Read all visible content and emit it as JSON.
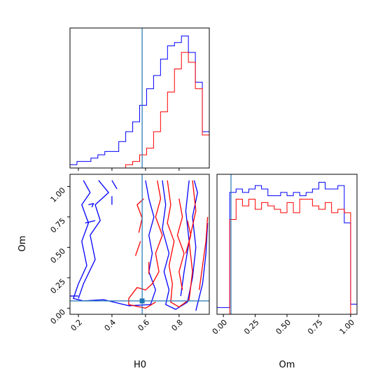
{
  "chart_data": {
    "type": "corner",
    "parameters": [
      "H0",
      "Om"
    ],
    "truth": {
      "H0": 0.58,
      "Om": 0.06
    },
    "colors": {
      "series_a": "#0000ff",
      "series_b": "#ff0000",
      "truth_line": "#1f77b4"
    },
    "panels": [
      {
        "name": "H0-histogram",
        "type": "step-histogram",
        "xlim": [
          0.15,
          0.98
        ],
        "x_ticks": [
          0.2,
          0.4,
          0.6,
          0.8
        ],
        "bins": [
          0.15,
          0.1915,
          0.233,
          0.2745,
          0.316,
          0.3575,
          0.399,
          0.4405,
          0.482,
          0.5235,
          0.565,
          0.6065,
          0.648,
          0.6895,
          0.731,
          0.7725,
          0.814,
          0.8555,
          0.897,
          0.9385,
          0.98
        ],
        "series": [
          {
            "color": "blue",
            "counts": [
              1,
              2,
              2,
              3,
              4,
              5,
              5,
              8,
              11,
              14,
              19,
              24,
              28,
              33,
              37,
              38,
              40,
              35,
              26,
              11
            ]
          },
          {
            "color": "red",
            "counts": [
              0,
              0,
              0,
              0,
              0,
              0,
              0,
              0,
              1,
              2,
              4,
              6,
              11,
              17,
              23,
              30,
              35,
              32,
              24,
              10
            ]
          }
        ]
      },
      {
        "name": "Om-histogram",
        "type": "step-histogram",
        "xlim": [
          -0.05,
          1.05
        ],
        "x_ticks": [
          "0.00",
          "0.25",
          "0.50",
          "0.75",
          "1.00"
        ],
        "bins": [
          -0.05,
          0.0,
          0.05,
          0.1,
          0.15,
          0.2,
          0.25,
          0.3,
          0.35,
          0.4,
          0.45,
          0.5,
          0.55,
          0.6,
          0.65,
          0.7,
          0.75,
          0.8,
          0.85,
          0.9,
          0.95,
          1.0,
          1.05
        ],
        "series": [
          {
            "color": "blue",
            "counts": [
              2,
              2,
              36,
              37,
              36,
              37,
              38,
              37,
              35,
              35,
              36,
              35,
              36,
              35,
              36,
              37,
              39,
              37,
              37,
              38,
              27,
              3
            ]
          },
          {
            "color": "red",
            "counts": [
              0,
              0,
              28,
              34,
              32,
              34,
              31,
              33,
              32,
              31,
              30,
              33,
              30,
              34,
              34,
              32,
              31,
              33,
              30,
              31,
              30,
              0
            ]
          }
        ]
      },
      {
        "name": "H0-Om-contour",
        "type": "contour",
        "xlim": [
          0.15,
          0.98
        ],
        "ylim": [
          -0.05,
          1.1
        ],
        "x_ticks": [
          0.2,
          0.4,
          0.6,
          0.8
        ],
        "y_ticks": [
          "0.00",
          "0.25",
          "0.50",
          "0.75",
          "1.00"
        ],
        "series": [
          {
            "color": "blue",
            "contours": [
              [
                [
                  0.2,
                  0.08
                ],
                [
                  0.23,
                  0.2
                ],
                [
                  0.3,
                  0.4
                ],
                [
                  0.27,
                  0.6
                ],
                [
                  0.33,
                  0.72
                ],
                [
                  0.3,
                  0.85
                ],
                [
                  0.38,
                  0.95
                ],
                [
                  0.32,
                  1.05
                ]
              ],
              [
                [
                  0.23,
                  1.05
                ],
                [
                  0.27,
                  0.95
                ],
                [
                  0.22,
                  0.85
                ],
                [
                  0.26,
                  0.7
                ],
                [
                  0.22,
                  0.55
                ],
                [
                  0.25,
                  0.35
                ],
                [
                  0.2,
                  0.2
                ],
                [
                  0.17,
                  0.08
                ],
                [
                  0.23,
                  0.06
                ],
                [
                  0.35,
                  0.07
                ],
                [
                  0.5,
                  0.02
                ],
                [
                  0.63,
                  0.03
                ],
                [
                  0.66,
                  0.15
                ],
                [
                  0.62,
                  0.3
                ],
                [
                  0.64,
                  0.45
                ],
                [
                  0.62,
                  0.6
                ],
                [
                  0.65,
                  0.75
                ],
                [
                  0.62,
                  0.9
                ],
                [
                  0.6,
                  1.05
                ]
              ],
              [
                [
                  0.7,
                  1.05
                ],
                [
                  0.72,
                  0.85
                ],
                [
                  0.7,
                  0.65
                ],
                [
                  0.74,
                  0.45
                ],
                [
                  0.71,
                  0.3
                ],
                [
                  0.74,
                  0.15
                ],
                [
                  0.72,
                  0.03
                ],
                [
                  0.78,
                  -0.01
                ],
                [
                  0.85,
                  0.05
                ],
                [
                  0.88,
                  0.25
                ],
                [
                  0.9,
                  0.5
                ],
                [
                  0.88,
                  0.75
                ],
                [
                  0.91,
                  0.95
                ],
                [
                  0.89,
                  1.05
                ]
              ],
              [
                [
                  0.86,
                  1.05
                ],
                [
                  0.84,
                  0.8
                ],
                [
                  0.86,
                  0.55
                ],
                [
                  0.83,
                  0.3
                ],
                [
                  0.81,
                  0.1
                ]
              ],
              [
                [
                  0.9,
                  -0.02
                ],
                [
                  0.94,
                  0.2
                ],
                [
                  0.96,
                  0.45
                ],
                [
                  0.97,
                  0.7
                ]
              ],
              [
                [
                  0.15,
                  0.1
                ],
                [
                  0.2,
                  0.1
                ]
              ],
              [
                [
                  0.26,
                  0.85
                ],
                [
                  0.29,
                  0.86
                ],
                [
                  0.28,
                  0.83
                ]
              ],
              [
                [
                  0.24,
                  0.7
                ],
                [
                  0.3,
                  0.72
                ]
              ],
              [
                [
                  0.4,
                  0.85
                ],
                [
                  0.4,
                  0.92
                ]
              ],
              [
                [
                  0.4,
                  1.05
                ],
                [
                  0.43,
                  0.98
                ]
              ]
            ]
          },
          {
            "color": "red",
            "contours": [
              [
                [
                  0.67,
                  1.05
                ],
                [
                  0.69,
                  0.9
                ],
                [
                  0.66,
                  0.75
                ],
                [
                  0.7,
                  0.6
                ],
                [
                  0.66,
                  0.45
                ],
                [
                  0.68,
                  0.3
                ],
                [
                  0.64,
                  0.2
                ],
                [
                  0.6,
                  0.15
                ],
                [
                  0.55,
                  0.17
                ],
                [
                  0.5,
                  0.08
                ],
                [
                  0.5,
                  0.03
                ],
                [
                  0.6,
                  0.0
                ],
                [
                  0.66,
                  0.05
                ]
              ],
              [
                [
                  0.73,
                  1.05
                ],
                [
                  0.75,
                  0.85
                ],
                [
                  0.73,
                  0.7
                ],
                [
                  0.77,
                  0.55
                ],
                [
                  0.74,
                  0.35
                ],
                [
                  0.76,
                  0.2
                ],
                [
                  0.75,
                  0.05
                ],
                [
                  0.8,
                  0.01
                ],
                [
                  0.86,
                  0.07
                ],
                [
                  0.88,
                  0.3
                ],
                [
                  0.86,
                  0.55
                ],
                [
                  0.9,
                  0.8
                ],
                [
                  0.88,
                  1.05
                ]
              ],
              [
                [
                  0.8,
                  0.9
                ],
                [
                  0.82,
                  0.75
                ],
                [
                  0.79,
                  0.6
                ],
                [
                  0.83,
                  0.45
                ],
                [
                  0.8,
                  0.3
                ],
                [
                  0.82,
                  0.15
                ]
              ],
              [
                [
                  0.84,
                  0.45
                ],
                [
                  0.87,
                  0.6
                ],
                [
                  0.85,
                  0.72
                ]
              ],
              [
                [
                  0.92,
                  0.15
                ],
                [
                  0.94,
                  0.35
                ],
                [
                  0.96,
                  0.55
                ],
                [
                  0.97,
                  0.75
                ]
              ],
              [
                [
                  0.56,
                  0.62
                ],
                [
                  0.58,
                  0.74
                ],
                [
                  0.55,
                  0.85
                ],
                [
                  0.59,
                  0.9
                ]
              ],
              [
                [
                  0.54,
                  0.43
                ],
                [
                  0.57,
                  0.55
                ]
              ],
              [
                [
                  0.62,
                  0.28
                ],
                [
                  0.62,
                  0.38
                ]
              ]
            ]
          }
        ]
      }
    ],
    "xlabels": [
      "H0",
      "Om"
    ],
    "ylabel": "Om"
  }
}
